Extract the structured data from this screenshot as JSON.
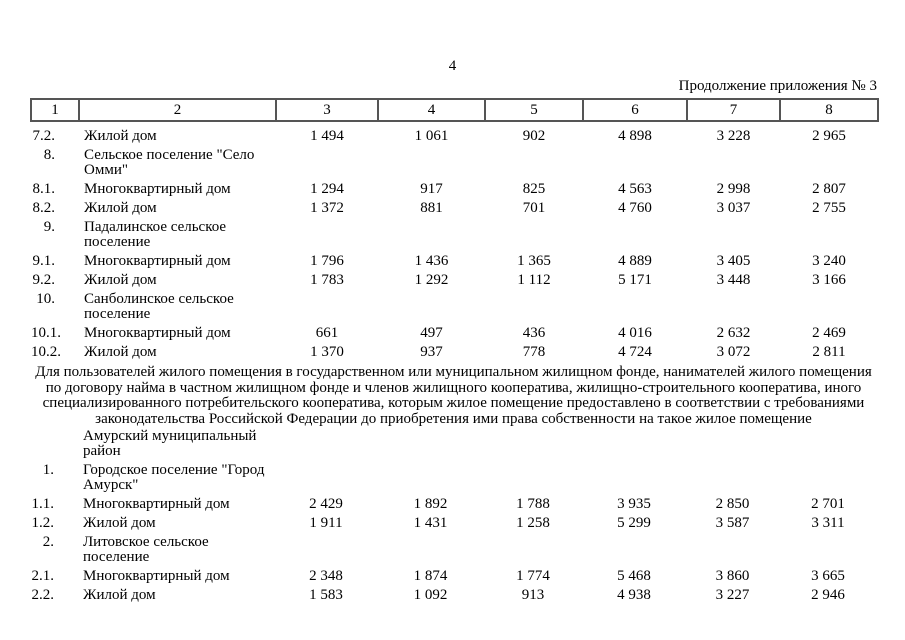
{
  "page": {
    "number": "4",
    "continuation_note": "Продолжение приложения № 3"
  },
  "table": {
    "header": [
      "1",
      "2",
      "3",
      "4",
      "5",
      "6",
      "7",
      "8"
    ],
    "rows_top": [
      {
        "num": "7.2.",
        "name": "Жилой дом",
        "values": [
          "1 494",
          "1 061",
          "902",
          "4 898",
          "3 228",
          "2 965"
        ]
      },
      {
        "num": "8.",
        "name": "Сельское поселение \"Село\nОмми\"",
        "values": []
      },
      {
        "num": "8.1.",
        "name": "Многоквартирный дом",
        "values": [
          "1 294",
          "917",
          "825",
          "4 563",
          "2 998",
          "2 807"
        ]
      },
      {
        "num": "8.2.",
        "name": "Жилой дом",
        "values": [
          "1 372",
          "881",
          "701",
          "4 760",
          "3 037",
          "2 755"
        ]
      },
      {
        "num": "9.",
        "name": "Падалинское сельское\nпоселение",
        "values": []
      },
      {
        "num": "9.1.",
        "name": "Многоквартирный дом",
        "values": [
          "1 796",
          "1 436",
          "1 365",
          "4 889",
          "3 405",
          "3 240"
        ]
      },
      {
        "num": "9.2.",
        "name": "Жилой дом",
        "values": [
          "1 783",
          "1 292",
          "1 112",
          "5 171",
          "3 448",
          "3 166"
        ]
      },
      {
        "num": "10.",
        "name": "Санболинское сельское\nпоселение",
        "values": []
      },
      {
        "num": "10.1.",
        "name": "Многоквартирный дом",
        "values": [
          "661",
          "497",
          "436",
          "4 016",
          "2 632",
          "2 469"
        ]
      },
      {
        "num": "10.2.",
        "name": "Жилой дом",
        "values": [
          "1 370",
          "937",
          "778",
          "4 724",
          "3 072",
          "2 811"
        ]
      }
    ],
    "section_note": "Для пользователей жилого помещения в государственном или муниципальном жилищном фонде, нанимателей жилого помещения по договору найма в частном жилищном фонде и членов жилищного кооператива, жилищно-строительного кооператива, иного специализированного потребительского кооператива, которым жилое помещение предоставлено в соответствии с требованиями законодательства Российской Федерации до приобретения ими права собственности на такое жилое помещение",
    "rows_bottom": [
      {
        "num": "",
        "name": "Амурский муниципальный\nрайон",
        "values": []
      },
      {
        "num": "1.",
        "name": "Городское поселение \"Город\nАмурск\"",
        "values": []
      },
      {
        "num": "1.1.",
        "name": "Многоквартирный дом",
        "values": [
          "2 429",
          "1 892",
          "1 788",
          "3 935",
          "2 850",
          "2 701"
        ]
      },
      {
        "num": "1.2.",
        "name": "Жилой дом",
        "values": [
          "1 911",
          "1 431",
          "1 258",
          "5 299",
          "3 587",
          "3 311"
        ]
      },
      {
        "num": "2.",
        "name": "Литовское сельское\nпоселение",
        "values": []
      },
      {
        "num": "2.1.",
        "name": "Многоквартирный дом",
        "values": [
          "2 348",
          "1 874",
          "1 774",
          "5 468",
          "3 860",
          "3 665"
        ]
      },
      {
        "num": "2.2.",
        "name": "Жилой дом",
        "values": [
          "1 583",
          "1 092",
          "913",
          "4 938",
          "3 227",
          "2 946"
        ]
      }
    ]
  }
}
